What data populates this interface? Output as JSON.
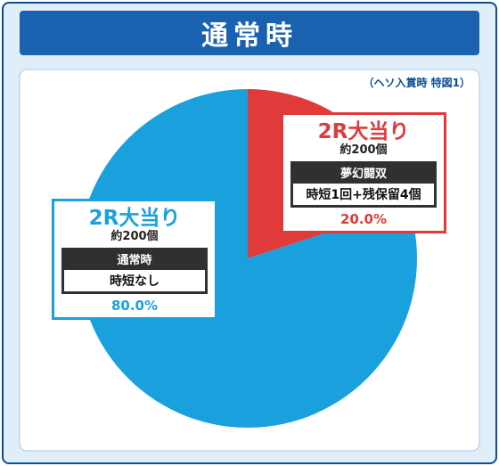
{
  "header": {
    "title": "通常時"
  },
  "note": "（ヘソ入賞時 特図1）",
  "colors": {
    "red": "#e03a3a",
    "blue": "#1aa1dd",
    "frame": "#0a4f96"
  },
  "chart_data": {
    "type": "pie",
    "slices": [
      {
        "value": 20.0,
        "percent_label": "20.0%",
        "title": "2R大当り",
        "sub": "約200個",
        "type_label": "夢幻闘双",
        "detail": "時短1回+残保留4個",
        "color": "#e03a3a"
      },
      {
        "value": 80.0,
        "percent_label": "80.0%",
        "title": "2R大当り",
        "sub": "約200個",
        "type_label": "通常時",
        "detail": "時短なし",
        "color": "#1aa1dd"
      }
    ]
  }
}
